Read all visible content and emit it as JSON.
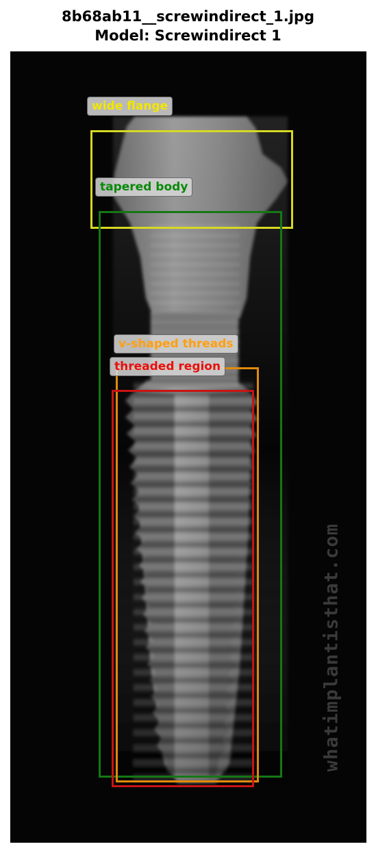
{
  "figure": {
    "title_line1": "8b68ab11__screwindirect_1.jpg",
    "title_line2": "Model: Screwindirect 1"
  },
  "image": {
    "watermark": "whatimplantisthat.com"
  },
  "annotations": [
    {
      "label": "wide flange",
      "color": "#f2e600",
      "box_color": "#d8d824"
    },
    {
      "label": "tapered body",
      "color": "#0a8a0a",
      "box_color": "#147814"
    },
    {
      "label": "v-shaped threads",
      "color": "#ff9f10",
      "box_color": "#e18a0c"
    },
    {
      "label": "threaded region",
      "color": "#e81010",
      "box_color": "#c81414"
    }
  ]
}
